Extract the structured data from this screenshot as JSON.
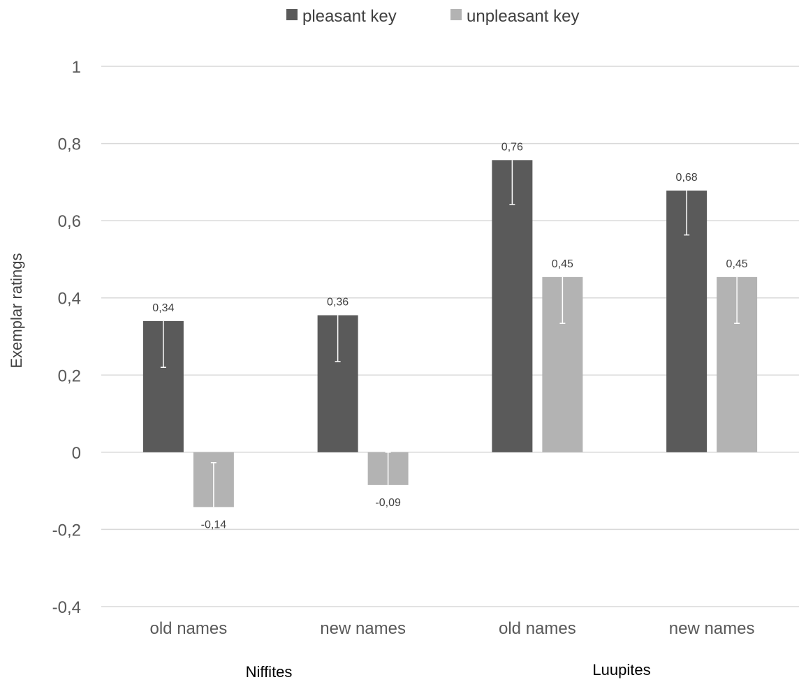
{
  "chart_data": {
    "type": "bar",
    "ylabel": "Exemplar ratings",
    "ylim": [
      -0.4,
      1
    ],
    "yticks": [
      1,
      0.8,
      0.6,
      0.4,
      0.2,
      0,
      -0.2,
      -0.4
    ],
    "ytick_labels": [
      "1",
      "0,8",
      "0,6",
      "0,4",
      "0,2",
      "0",
      "-0,2",
      "-0,4"
    ],
    "grid": true,
    "legend_position": "top-center",
    "categories": [
      "old names",
      "new names",
      "old names",
      "new names"
    ],
    "groups": [
      {
        "label": "Niffites",
        "categories": [
          0,
          1
        ]
      },
      {
        "label": "Luupites",
        "categories": [
          2,
          3
        ]
      }
    ],
    "series": [
      {
        "name": "pleasant key",
        "color": "#5a5a5a",
        "values": [
          0.34,
          0.355,
          0.757,
          0.678
        ],
        "labels": [
          "0,34",
          "0,36",
          "0,76",
          "0,68"
        ],
        "error": [
          0.12,
          0.12,
          0.115,
          0.115
        ]
      },
      {
        "name": "unpleasant key",
        "color": "#b3b3b3",
        "values": [
          -0.142,
          -0.085,
          0.454,
          0.454
        ],
        "labels": [
          "-0,14",
          "-0,09",
          "0,45",
          "0,45"
        ],
        "error": [
          0.115,
          0.085,
          0.12,
          0.12
        ]
      }
    ]
  }
}
